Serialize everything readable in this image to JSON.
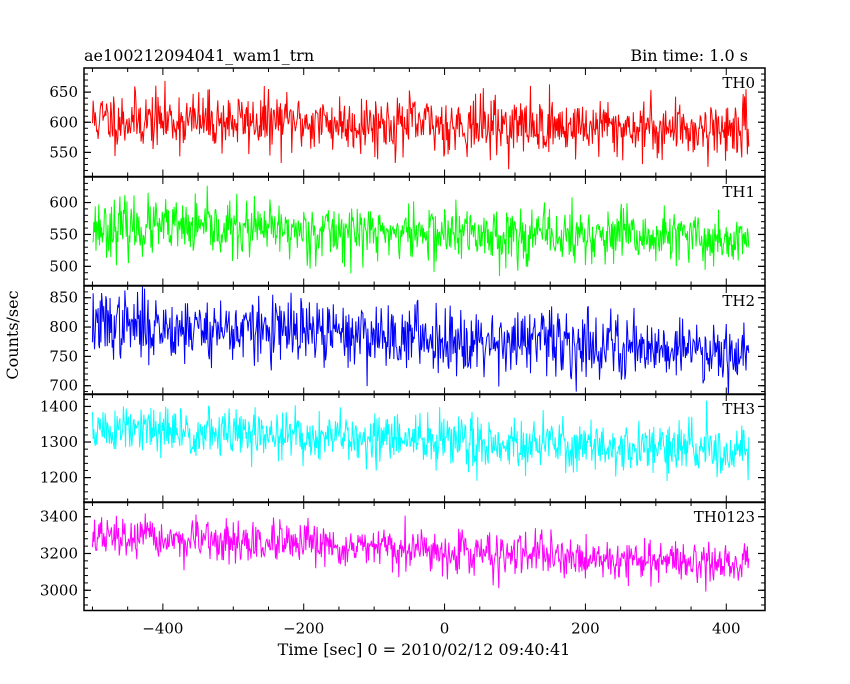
{
  "header": {
    "title": "ae100212094041_wam1_trn",
    "bin_time": "Bin time: 1.0 s"
  },
  "chart_data": {
    "type": "line",
    "title": "ae100212094041_wam1_trn",
    "subtitle": "Bin time: 1.0 s",
    "xlabel": "Time [sec] 0 = 2010/02/12 09:40:41",
    "ylabel": "Counts/sec",
    "x_ticks": [
      -400,
      -200,
      0,
      200,
      400
    ],
    "xlim": [
      -512,
      455
    ],
    "x_range_data": [
      -500,
      432
    ],
    "bin_time": 1.0,
    "grid": false,
    "panels": [
      {
        "name": "TH0",
        "color": "#ff0000",
        "ylim": [
          510,
          690
        ],
        "y_ticks": [
          550,
          600,
          650
        ],
        "mean_start": 605,
        "mean_end": 588,
        "noise_sd": 24,
        "seed": 11
      },
      {
        "name": "TH1",
        "color": "#00ff00",
        "ylim": [
          470,
          640
        ],
        "y_ticks": [
          500,
          550,
          600
        ],
        "mean_start": 562,
        "mean_end": 542,
        "noise_sd": 22,
        "seed": 23
      },
      {
        "name": "TH2",
        "color": "#0000ff",
        "ylim": [
          685,
          870
        ],
        "y_ticks": [
          700,
          750,
          800,
          850
        ],
        "mean_start": 805,
        "mean_end": 760,
        "noise_sd": 28,
        "seed": 37
      },
      {
        "name": "TH3",
        "color": "#00ffff",
        "ylim": [
          1130,
          1435
        ],
        "y_ticks": [
          1200,
          1300,
          1400
        ],
        "mean_start": 1335,
        "mean_end": 1275,
        "noise_sd": 36,
        "seed": 51
      },
      {
        "name": "TH0123",
        "color": "#ff00ff",
        "ylim": [
          2890,
          3480
        ],
        "y_ticks": [
          3000,
          3200,
          3400
        ],
        "mean_start": 3290,
        "mean_end": 3140,
        "noise_sd": 55,
        "seed": 67
      }
    ]
  }
}
